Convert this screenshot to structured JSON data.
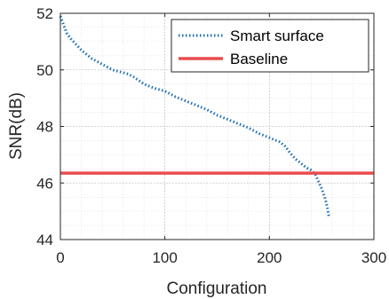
{
  "chart_data": {
    "type": "line",
    "title": "",
    "xlabel": "Configuration",
    "ylabel": "SNR(dB)",
    "xlim": [
      0,
      300
    ],
    "ylim": [
      44,
      52
    ],
    "xticks": [
      0,
      100,
      200,
      300
    ],
    "yticks": [
      44,
      46,
      48,
      50,
      52
    ],
    "grid": true,
    "legend_position": "top-right",
    "series": [
      {
        "name": "Smart surface",
        "style": "dotted",
        "color": "#1f6fb5",
        "x": [
          0,
          3,
          6,
          10,
          15,
          20,
          25,
          30,
          40,
          50,
          60,
          65,
          70,
          80,
          90,
          100,
          110,
          120,
          130,
          140,
          150,
          160,
          170,
          180,
          190,
          200,
          210,
          215,
          220,
          225,
          230,
          235,
          240,
          244,
          247,
          250,
          253,
          255,
          257
        ],
        "y": [
          51.9,
          51.6,
          51.3,
          51.1,
          50.9,
          50.7,
          50.55,
          50.4,
          50.2,
          50.0,
          49.9,
          49.85,
          49.75,
          49.5,
          49.35,
          49.25,
          49.05,
          48.9,
          48.75,
          48.6,
          48.4,
          48.25,
          48.1,
          47.95,
          47.75,
          47.6,
          47.45,
          47.3,
          47.05,
          46.85,
          46.7,
          46.55,
          46.45,
          46.3,
          46.05,
          45.8,
          45.5,
          45.2,
          44.8
        ]
      },
      {
        "name": "Baseline",
        "style": "solid",
        "color": "#ea4d4d",
        "x": [
          0,
          300
        ],
        "y": [
          46.35,
          46.35
        ]
      }
    ]
  }
}
